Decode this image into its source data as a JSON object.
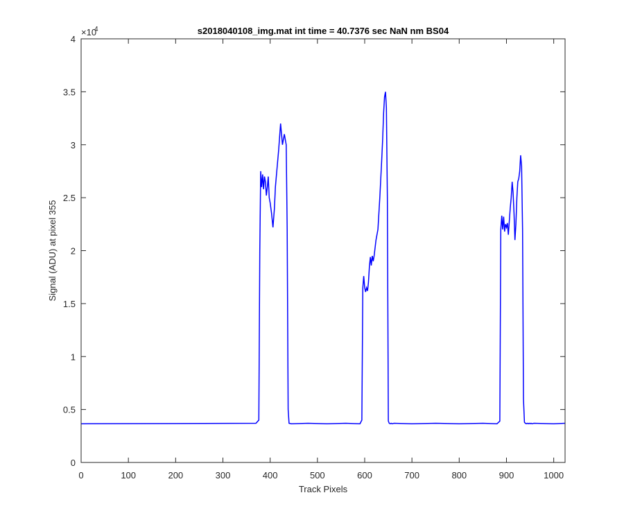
{
  "chart_data": {
    "type": "line",
    "title": "s2018040108_img.mat int time = 40.7376 sec  NaN nm BS04",
    "xlabel": "Track Pixels",
    "ylabel": "Signal (ADU) at pixel 355",
    "y_exponent_base": "×10",
    "y_exponent_power": "4",
    "xlim": [
      0,
      1024
    ],
    "ylim": [
      0,
      40000
    ],
    "xticks": [
      0,
      100,
      200,
      300,
      400,
      500,
      600,
      700,
      800,
      900,
      1000
    ],
    "xtick_labels": [
      "0",
      "100",
      "200",
      "300",
      "400",
      "500",
      "600",
      "700",
      "800",
      "900",
      "1000"
    ],
    "yticks": [
      0,
      5000,
      10000,
      15000,
      20000,
      25000,
      30000,
      35000,
      40000
    ],
    "ytick_labels": [
      "0",
      "0.5",
      "1",
      "1.5",
      "2",
      "2.5",
      "3",
      "3.5",
      "4"
    ],
    "grid": false,
    "line_color": "#0000ff",
    "series": [
      {
        "x": [
          0,
          370,
          376,
          378,
          380,
          382,
          384,
          386,
          388,
          390,
          392,
          394,
          396,
          398,
          400,
          403,
          406,
          409,
          411,
          414,
          418,
          422,
          426,
          430,
          434,
          436,
          438,
          440,
          445,
          480,
          520,
          560,
          590,
          594,
          596,
          598,
          600,
          602,
          604,
          606,
          608,
          610,
          612,
          614,
          616,
          618,
          620,
          624,
          628,
          632,
          636,
          638,
          640,
          642,
          644,
          646,
          648,
          650,
          652,
          654,
          656,
          658,
          662,
          700,
          750,
          800,
          850,
          880,
          886,
          888,
          890,
          892,
          894,
          896,
          898,
          900,
          902,
          904,
          906,
          908,
          910,
          912,
          914,
          916,
          918,
          920,
          922,
          924,
          926,
          928,
          930,
          932,
          934,
          936,
          938,
          940,
          942,
          944,
          946,
          948,
          950,
          952,
          954,
          958,
          1000,
          1024
        ],
        "y": [
          3650,
          3700,
          4000,
          20000,
          27500,
          26000,
          27200,
          25800,
          27000,
          26500,
          25200,
          26000,
          27000,
          25000,
          24500,
          23500,
          22200,
          24000,
          26000,
          27500,
          29500,
          32000,
          30000,
          31000,
          30000,
          22000,
          5000,
          3700,
          3650,
          3700,
          3650,
          3700,
          3650,
          4000,
          16500,
          17600,
          16500,
          16100,
          16500,
          16200,
          17000,
          18500,
          19400,
          18600,
          19500,
          19000,
          19500,
          21000,
          22000,
          25000,
          28500,
          30500,
          33000,
          34500,
          35000,
          33500,
          25000,
          3900,
          3700,
          3650,
          3700,
          3650,
          3700,
          3650,
          3700,
          3650,
          3700,
          3650,
          3900,
          22000,
          23300,
          22000,
          23200,
          21800,
          22500,
          22200,
          22600,
          21500,
          22800,
          24000,
          25000,
          26500,
          25500,
          23500,
          21000,
          22500,
          25000,
          26500,
          26800,
          27500,
          29000,
          28000,
          22000,
          6000,
          3800,
          3700,
          3650,
          3700,
          3650,
          3700,
          3650,
          3700,
          3650,
          3700,
          3650,
          3700
        ]
      }
    ]
  }
}
